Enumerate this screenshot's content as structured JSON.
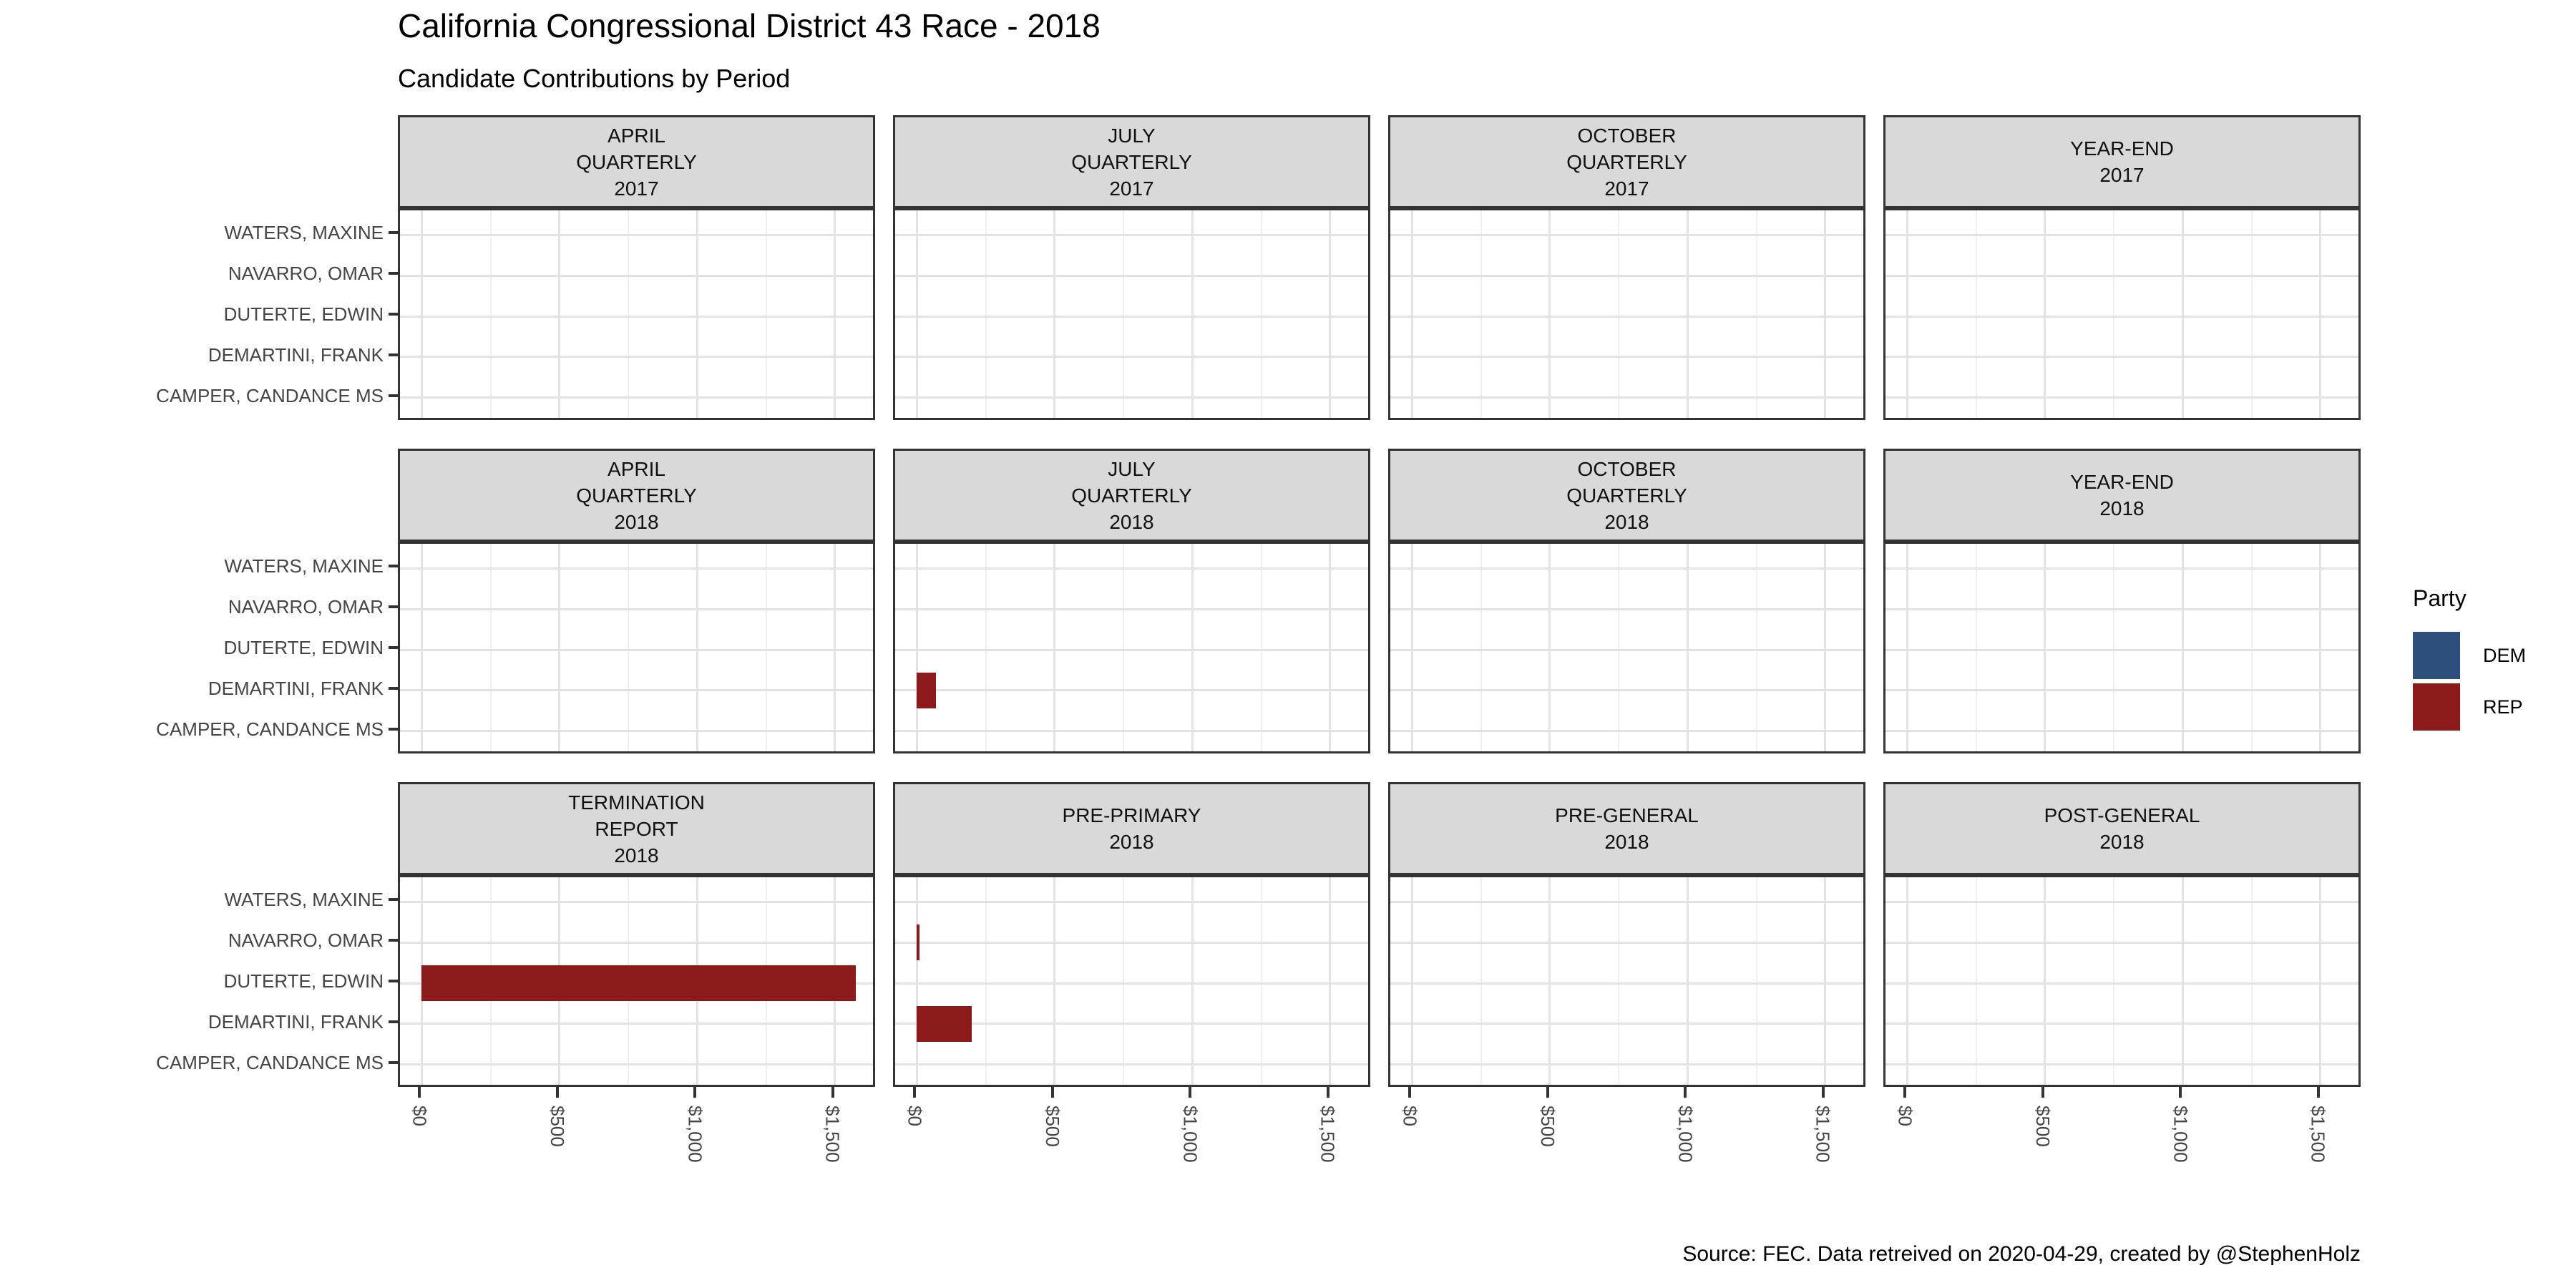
{
  "title": "California Congressional District 43 Race - 2018",
  "subtitle": "Candidate Contributions by Period",
  "caption": "Source: FEC. Data retreived on 2020-04-29, created by @StephenHolz",
  "legend": {
    "title": "Party",
    "items": [
      {
        "label": "DEM",
        "color": "#2d4f7c"
      },
      {
        "label": "REP",
        "color": "#8c1a1a"
      }
    ]
  },
  "colors": {
    "dem": "#2d4f7c",
    "rep": "#8c1a1a",
    "strip_fill": "#d9d9d9",
    "panel_border": "#333333",
    "grid_major": "#e3e3e3",
    "grid_minor": "#f0f0f0",
    "axis_text": "#454545"
  },
  "chart_data": {
    "type": "bar",
    "orientation": "horizontal",
    "title": "California Congressional District 43 Race - 2018",
    "subtitle": "Candidate Contributions by Period",
    "legend_title": "Party",
    "legend_position": "right",
    "grid": "major-and-minor",
    "candidates": [
      "WATERS, MAXINE",
      "NAVARRO, OMAR",
      "DUTERTE, EDWIN",
      "DEMARTINI, FRANK",
      "CAMPER, CANDANCE MS"
    ],
    "x_tick_labels": [
      "$0",
      "$500",
      "$1,000",
      "$1,500"
    ],
    "x_tick_values": [
      0,
      500,
      1000,
      1500
    ],
    "x_minor_values": [
      250,
      750,
      1250
    ],
    "xlim": [
      -79,
      1654
    ],
    "facets": [
      {
        "label_lines": [
          "APRIL",
          "QUARTERLY",
          "2017"
        ],
        "bars": []
      },
      {
        "label_lines": [
          "JULY",
          "QUARTERLY",
          "2017"
        ],
        "bars": []
      },
      {
        "label_lines": [
          "OCTOBER",
          "QUARTERLY",
          "2017"
        ],
        "bars": []
      },
      {
        "label_lines": [
          "YEAR-END",
          "2017"
        ],
        "bars": []
      },
      {
        "label_lines": [
          "APRIL",
          "QUARTERLY",
          "2018"
        ],
        "bars": []
      },
      {
        "label_lines": [
          "JULY",
          "QUARTERLY",
          "2018"
        ],
        "bars": [
          {
            "candidate": "DEMARTINI, FRANK",
            "party": "REP",
            "value": 70
          }
        ]
      },
      {
        "label_lines": [
          "OCTOBER",
          "QUARTERLY",
          "2018"
        ],
        "bars": []
      },
      {
        "label_lines": [
          "YEAR-END",
          "2018"
        ],
        "bars": []
      },
      {
        "label_lines": [
          "TERMINATION",
          "REPORT",
          "2018"
        ],
        "bars": [
          {
            "candidate": "DUTERTE, EDWIN",
            "party": "REP",
            "value": 1575
          }
        ]
      },
      {
        "label_lines": [
          "PRE-PRIMARY",
          "2018"
        ],
        "bars": [
          {
            "candidate": "NAVARRO, OMAR",
            "party": "REP",
            "value": 10
          },
          {
            "candidate": "DEMARTINI, FRANK",
            "party": "REP",
            "value": 200
          }
        ]
      },
      {
        "label_lines": [
          "PRE-GENERAL",
          "2018"
        ],
        "bars": []
      },
      {
        "label_lines": [
          "POST-GENERAL",
          "2018"
        ],
        "bars": []
      }
    ]
  }
}
